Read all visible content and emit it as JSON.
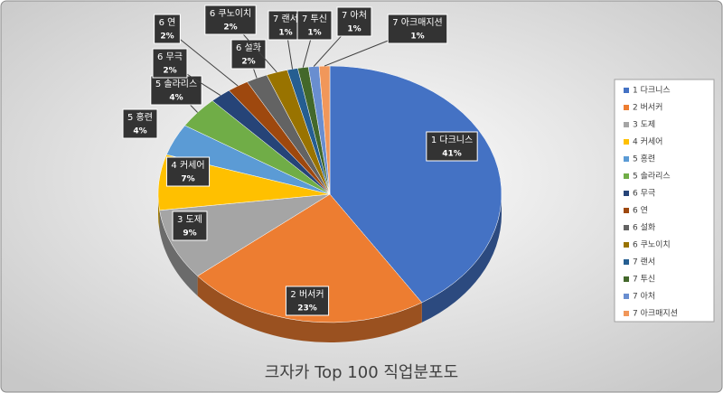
{
  "chart_data": {
    "type": "pie3d",
    "title": "크자카 Top 100 직업분포도",
    "categories": [
      "1 다크니스",
      "2 버서커",
      "3 도제",
      "4 커세어",
      "5 홍련",
      "5 솔라리스",
      "6 무극",
      "6 연",
      "6 설화",
      "6 쿠노이치",
      "7 랜서",
      "7 투신",
      "7 아처",
      "7 아크매지션"
    ],
    "values": [
      41,
      23,
      9,
      7,
      4,
      4,
      2,
      2,
      2,
      2,
      1,
      1,
      1,
      1
    ],
    "value_labels": [
      "41%",
      "23%",
      "9%",
      "7%",
      "4%",
      "4%",
      "2%",
      "2%",
      "2%",
      "2%",
      "1%",
      "1%",
      "1%",
      "1%"
    ],
    "colors": [
      "#4472c4",
      "#ed7d31",
      "#a5a5a5",
      "#ffc000",
      "#5b9bd5",
      "#70ad47",
      "#264478",
      "#9e480e",
      "#636363",
      "#997300",
      "#255e91",
      "#43682b",
      "#698ed0",
      "#f1975a"
    ],
    "legend": "right"
  }
}
